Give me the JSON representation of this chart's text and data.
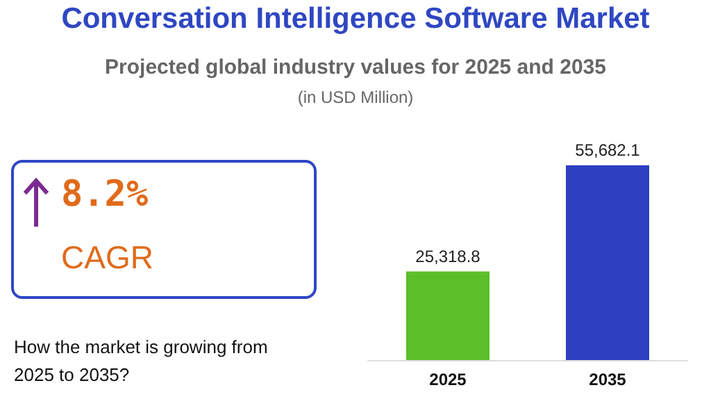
{
  "chart_data": {
    "type": "bar",
    "title": "Conversation Intelligence Software Market",
    "subtitle": "Projected global industry values for 2025 and 2035",
    "annotations": [
      "(in USD Million)",
      "8.2%",
      "CAGR",
      "How the market is growing from 2025 to 2035?"
    ],
    "categories": [
      "2025",
      "2035"
    ],
    "values": [
      25318.8,
      55682.1
    ],
    "colors": [
      "#5cbf2a",
      "#2e3fbf"
    ],
    "value_labels": [
      "25,318.8",
      "55,682.1"
    ]
  }
}
